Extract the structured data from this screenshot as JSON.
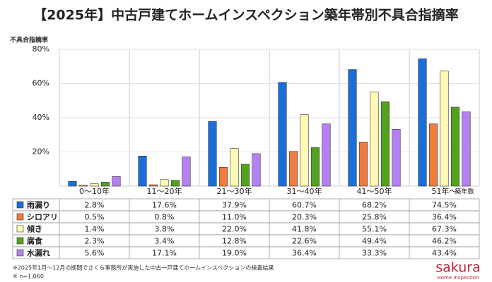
{
  "chart_data": {
    "type": "bar",
    "title": "【2025年】中古戸建てホームインスペクション築年帯別不具合指摘率",
    "y_label": "不具合指摘率",
    "x_label": "築年数",
    "categories": [
      "0〜10年",
      "11〜20年",
      "21〜30年",
      "31〜40年",
      "41〜50年",
      "51年〜"
    ],
    "series": [
      {
        "name": "雨漏り",
        "color": "#1a6ed8",
        "values": [
          2.8,
          17.6,
          37.9,
          60.7,
          68.2,
          74.5
        ],
        "value_labels": [
          "2.8%",
          "17.6%",
          "37.9%",
          "60.7%",
          "68.2%",
          "74.5%"
        ]
      },
      {
        "name": "シロアリ",
        "color": "#f07b3f",
        "values": [
          0.5,
          0.8,
          11.0,
          20.3,
          25.8,
          36.4
        ],
        "value_labels": [
          "0.5%",
          "0.8%",
          "11.0%",
          "20.3%",
          "25.8%",
          "36.4%"
        ]
      },
      {
        "name": "傾き",
        "color": "#fff9b5",
        "values": [
          1.4,
          3.8,
          22.0,
          41.8,
          55.1,
          67.3
        ],
        "value_labels": [
          "1.4%",
          "3.8%",
          "22.0%",
          "41.8%",
          "55.1%",
          "67.3%"
        ]
      },
      {
        "name": "腐食",
        "color": "#52a31b",
        "values": [
          2.3,
          3.4,
          12.8,
          22.6,
          49.4,
          46.2
        ],
        "value_labels": [
          "2.3%",
          "3.4%",
          "12.8%",
          "22.6%",
          "49.4%",
          "46.2%"
        ]
      },
      {
        "name": "水漏れ",
        "color": "#b581f0",
        "values": [
          5.6,
          17.1,
          19.0,
          36.4,
          33.3,
          43.4
        ],
        "value_labels": [
          "5.6%",
          "17.1%",
          "19.0%",
          "36.4%",
          "33.3%",
          "43.4%"
        ]
      }
    ],
    "ylim": [
      0,
      80
    ],
    "yticks": [
      {
        "value": 20,
        "label": "20%"
      },
      {
        "value": 40,
        "label": "40%"
      },
      {
        "value": 60,
        "label": "60%"
      },
      {
        "value": 80,
        "label": "80%"
      }
    ],
    "grid": true
  },
  "footnotes": [
    "※2025年1月～12月の期間でさくら事務所が実施した中古一戸建てホームインスペクションの検査結果",
    "※ n=1,060"
  ],
  "logo": {
    "name": "sakura",
    "tagline": "Home Inspection"
  }
}
